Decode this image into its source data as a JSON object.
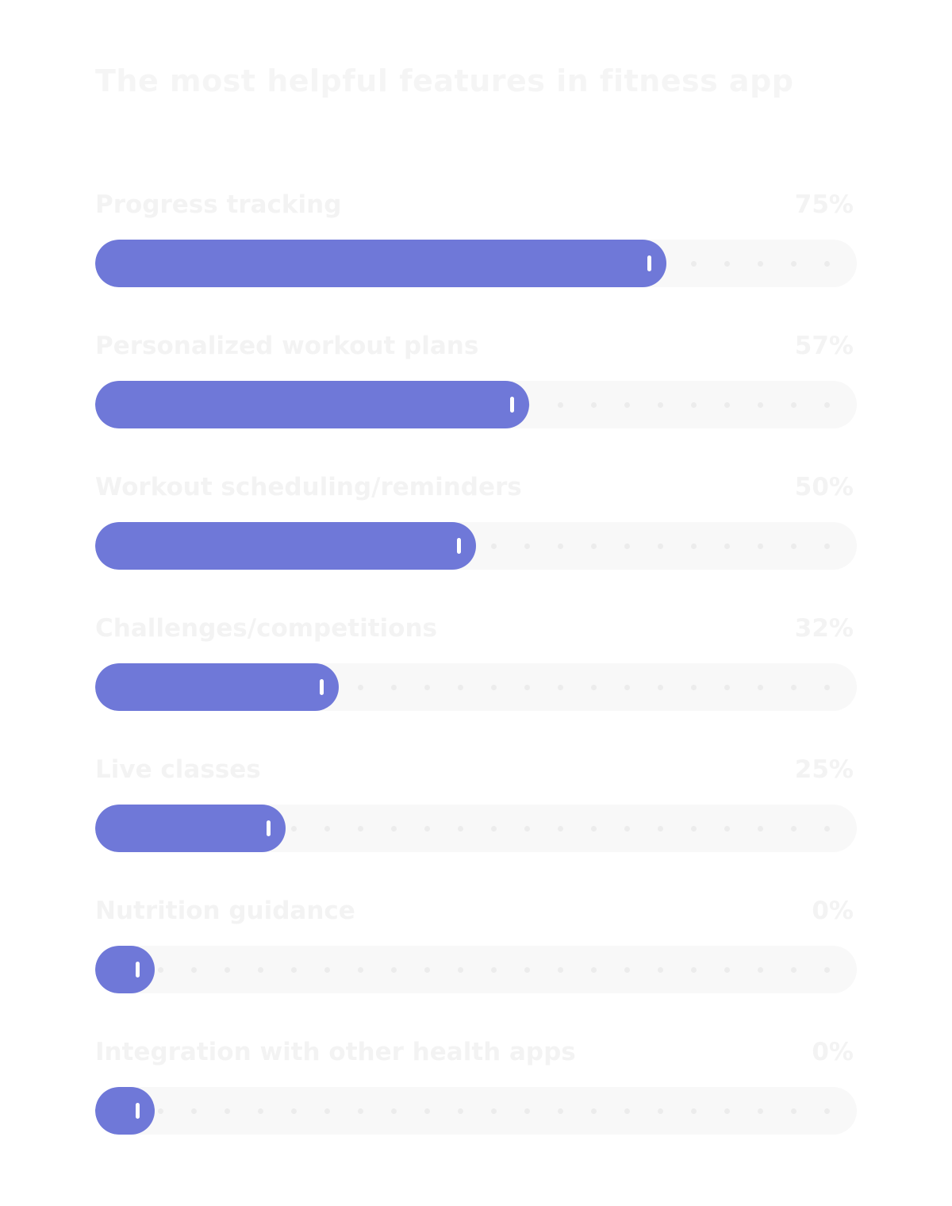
{
  "chart_data": {
    "type": "bar",
    "orientation": "horizontal",
    "title": "The most helpful features in fitness app",
    "categories": [
      "Progress tracking",
      "Personalized workout plans",
      "Workout scheduling/reminders",
      "Challenges/competitions",
      "Live classes",
      "Nutrition guidance",
      "Integration with other health apps"
    ],
    "values": [
      75,
      57,
      50,
      32,
      25,
      0,
      0
    ],
    "value_labels": [
      "75%",
      "57%",
      "50%",
      "32%",
      "25%",
      "0%",
      "0%"
    ],
    "xlim": [
      0,
      100
    ],
    "unit": "%",
    "colors": {
      "bar": "#6f78d8",
      "track": "#f8f8f8",
      "dot": "#ececec",
      "handle": "#ffffff",
      "text": "#f3f3f3"
    },
    "grid": false,
    "legend": "none"
  }
}
